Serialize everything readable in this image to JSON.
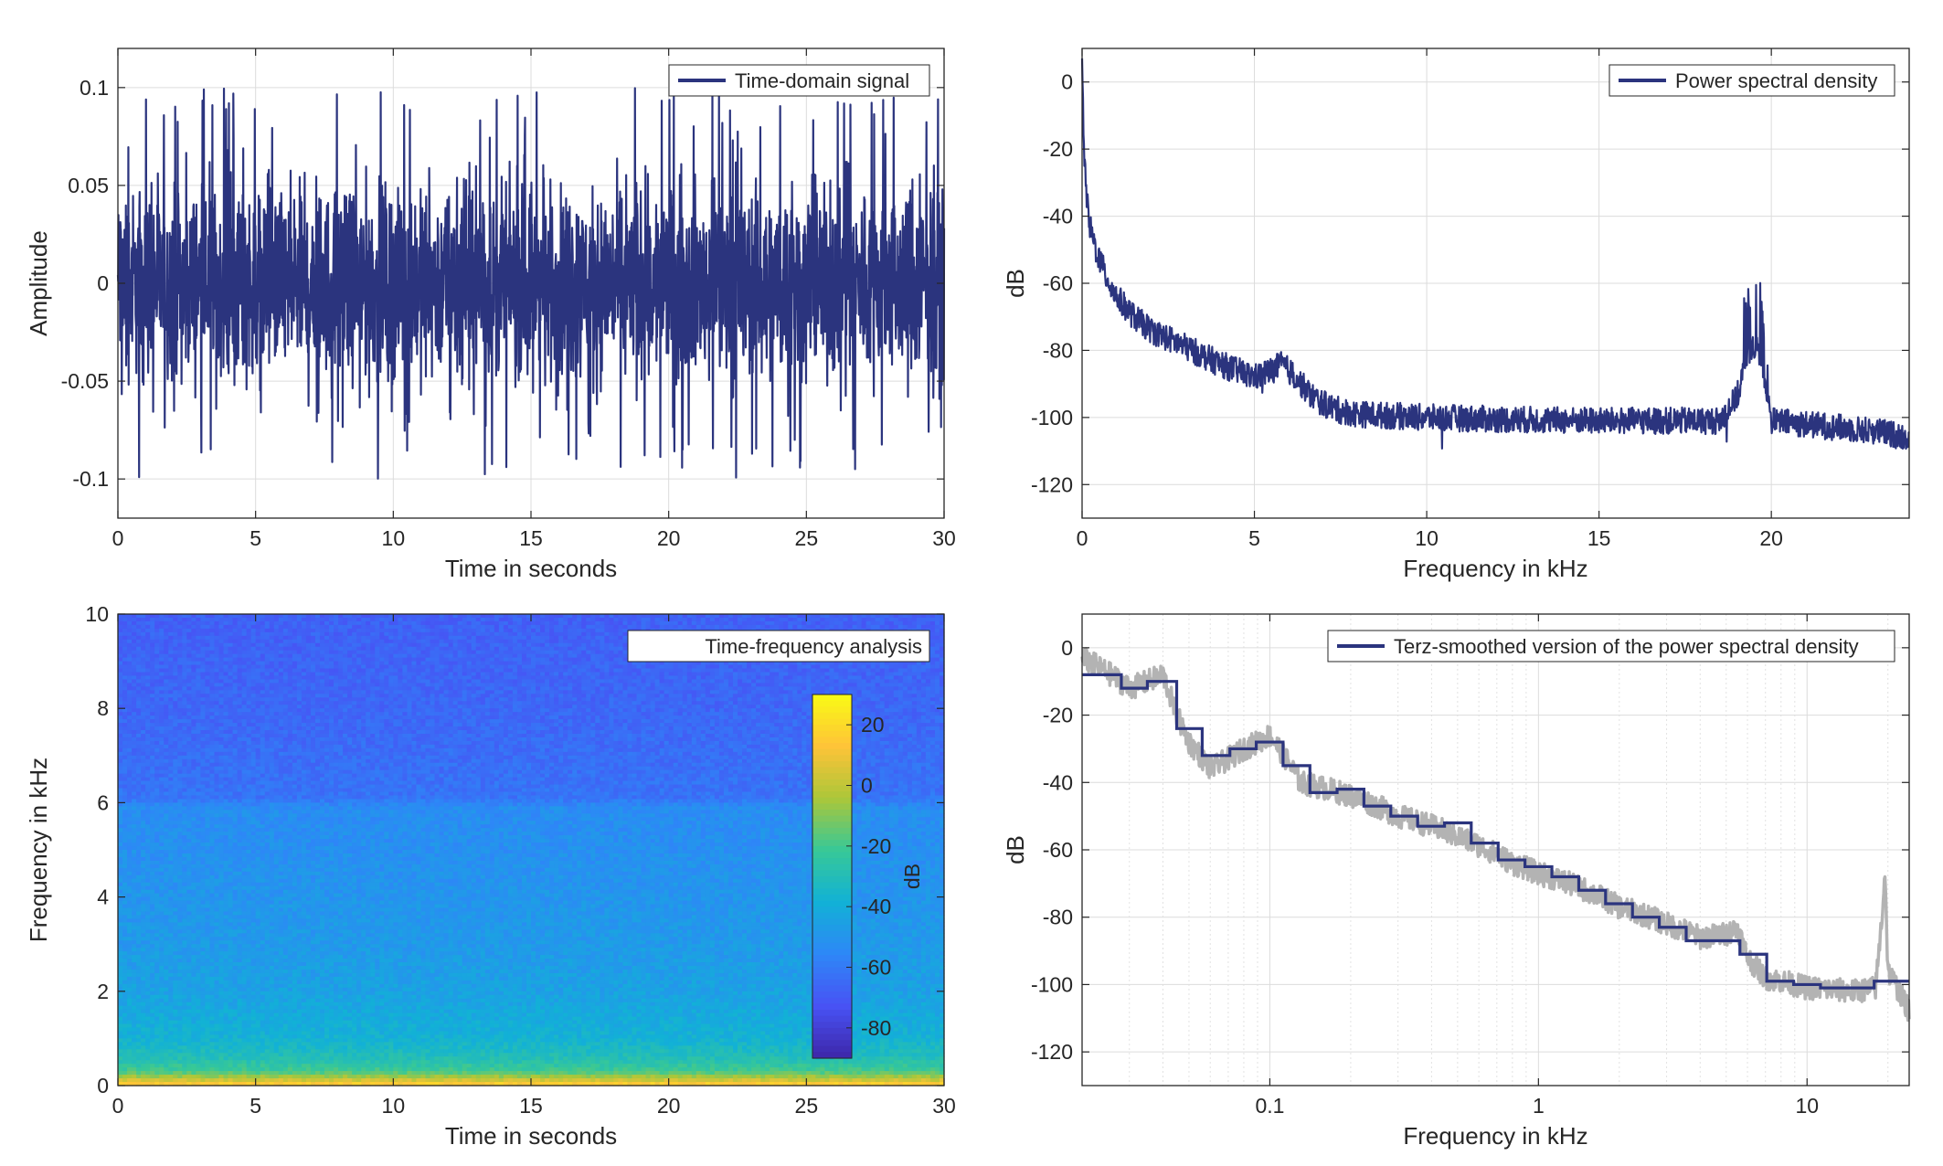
{
  "chart_data": [
    {
      "type": "line",
      "legend": "Time-domain signal",
      "legend_position": "top-right",
      "xlabel": "Time in seconds",
      "ylabel": "Amplitude",
      "xlim": [
        0,
        30
      ],
      "ylim": [
        -0.12,
        0.12
      ],
      "xticks": [
        0,
        5,
        10,
        15,
        20,
        25,
        30
      ],
      "xtick_labels": [
        "0",
        "5",
        "10",
        "15",
        "20",
        "25",
        "30"
      ],
      "yticks": [
        0.1,
        0.05,
        0,
        -0.05,
        -0.1
      ],
      "ytick_labels": [
        "0.1",
        "0.05",
        "0",
        "-0.05",
        "-0.1"
      ],
      "grid": true,
      "color": "#2b347e",
      "peak_amplitude": 0.1
    },
    {
      "type": "line",
      "legend": "Power spectral density",
      "legend_position": "top-right",
      "xlabel": "Frequency in kHz",
      "ylabel": "dB",
      "xlim": [
        0,
        24
      ],
      "ylim": [
        -130,
        10
      ],
      "xticks": [
        0,
        5,
        10,
        15,
        20
      ],
      "xtick_labels": [
        "0",
        "5",
        "10",
        "15",
        "20"
      ],
      "yticks": [
        0,
        -20,
        -40,
        -60,
        -80,
        -100,
        -120
      ],
      "ytick_labels": [
        "0",
        "-20",
        "-40",
        "-60",
        "-80",
        "-100",
        "-120"
      ],
      "grid": true,
      "color": "#2b347e",
      "envelope": {
        "x": [
          0,
          0.05,
          0.1,
          0.2,
          0.4,
          0.7,
          1,
          1.5,
          2,
          3,
          4,
          4.5,
          5,
          5.5,
          5.8,
          6.2,
          6.6,
          7,
          7.5,
          8,
          10,
          12,
          15,
          17,
          18.5,
          19,
          19.3,
          19.6,
          19.8,
          20,
          21,
          22,
          23,
          24
        ],
        "y": [
          5,
          -18,
          -30,
          -42,
          -50,
          -58,
          -64,
          -70,
          -74,
          -79,
          -84,
          -86,
          -88,
          -86,
          -84,
          -88,
          -93,
          -96,
          -98,
          -99,
          -100,
          -100.5,
          -101,
          -101,
          -101,
          -94,
          -82,
          -78,
          -88,
          -101,
          -102,
          -103,
          -104,
          -106
        ]
      }
    },
    {
      "type": "heatmap",
      "legend": "Time-frequency analysis",
      "legend_position": "top-right",
      "xlabel": "Time in seconds",
      "ylabel": "Frequency in kHz",
      "xlim": [
        0,
        30
      ],
      "ylim": [
        0,
        10
      ],
      "xticks": [
        0,
        5,
        10,
        15,
        20,
        25,
        30
      ],
      "xtick_labels": [
        "0",
        "5",
        "10",
        "15",
        "20",
        "25",
        "30"
      ],
      "yticks": [
        10,
        8,
        6,
        4,
        2,
        0
      ],
      "ytick_labels": [
        "10",
        "8",
        "6",
        "4",
        "2",
        "0"
      ],
      "colorbar": {
        "label": "dB",
        "range": [
          -90,
          30
        ],
        "ticks": [
          20,
          0,
          -20,
          -40,
          -60,
          -80
        ],
        "tick_labels": [
          "20",
          "0",
          "-20",
          "-40",
          "-60",
          "-80"
        ]
      },
      "level_profile": {
        "freq_khz": [
          0,
          0.1,
          0.3,
          0.6,
          1,
          2,
          3,
          4,
          5,
          5.9,
          6.1,
          7,
          8,
          9,
          10
        ],
        "db": [
          20,
          5,
          -20,
          -30,
          -38,
          -45,
          -48,
          -50,
          -52,
          -53,
          -62,
          -64,
          -66,
          -67,
          -68
        ]
      }
    },
    {
      "type": "line",
      "legend": "Terz-smoothed version of the power spectral density",
      "legend_position": "top-right",
      "xlabel": "Frequency in kHz",
      "ylabel": "dB",
      "xscale": "log",
      "xlim": [
        0.02,
        24
      ],
      "ylim": [
        -130,
        10
      ],
      "xticks": [
        0.1,
        1,
        10
      ],
      "xtick_labels": [
        "0.1",
        "1",
        "10"
      ],
      "yticks": [
        0,
        -20,
        -40,
        -60,
        -80,
        -100,
        -120
      ],
      "ytick_labels": [
        "0",
        "-20",
        "-40",
        "-60",
        "-80",
        "-100",
        "-120"
      ],
      "grid": true,
      "colors": {
        "smoothed": "#2b347e",
        "raw": "#b3b3b3"
      },
      "smoothed": {
        "band_edges_khz": [
          0.02,
          0.028,
          0.035,
          0.045,
          0.056,
          0.071,
          0.089,
          0.112,
          0.141,
          0.178,
          0.224,
          0.282,
          0.355,
          0.447,
          0.562,
          0.708,
          0.891,
          1.122,
          1.413,
          1.778,
          2.239,
          2.818,
          3.548,
          4.467,
          5.623,
          7.079,
          8.913,
          11.22,
          14.13,
          17.78,
          24
        ],
        "db": [
          -8,
          -12,
          -10,
          -24,
          -32,
          -30,
          -28,
          -35,
          -43,
          -42,
          -47,
          -50,
          -53,
          -52,
          -58,
          -63,
          -65,
          -68,
          -72,
          -76,
          -80,
          -83,
          -87,
          -87,
          -91,
          -99,
          -100,
          -101,
          -101,
          -99
        ]
      },
      "raw_envelope": {
        "x": [
          0.02,
          0.03,
          0.04,
          0.045,
          0.05,
          0.06,
          0.08,
          0.1,
          0.13,
          0.2,
          0.3,
          0.5,
          0.8,
          1,
          1.5,
          2,
          3,
          4,
          5,
          5.5,
          6,
          7,
          10,
          15,
          18,
          19,
          19.5,
          20,
          24
        ],
        "y": [
          -3,
          -12,
          -8,
          -20,
          -28,
          -36,
          -30,
          -26,
          -40,
          -44,
          -50,
          -56,
          -64,
          -67,
          -72,
          -77,
          -82,
          -86,
          -85,
          -83,
          -92,
          -98,
          -101,
          -102,
          -101,
          -80,
          -66,
          -96,
          -108
        ]
      }
    }
  ]
}
